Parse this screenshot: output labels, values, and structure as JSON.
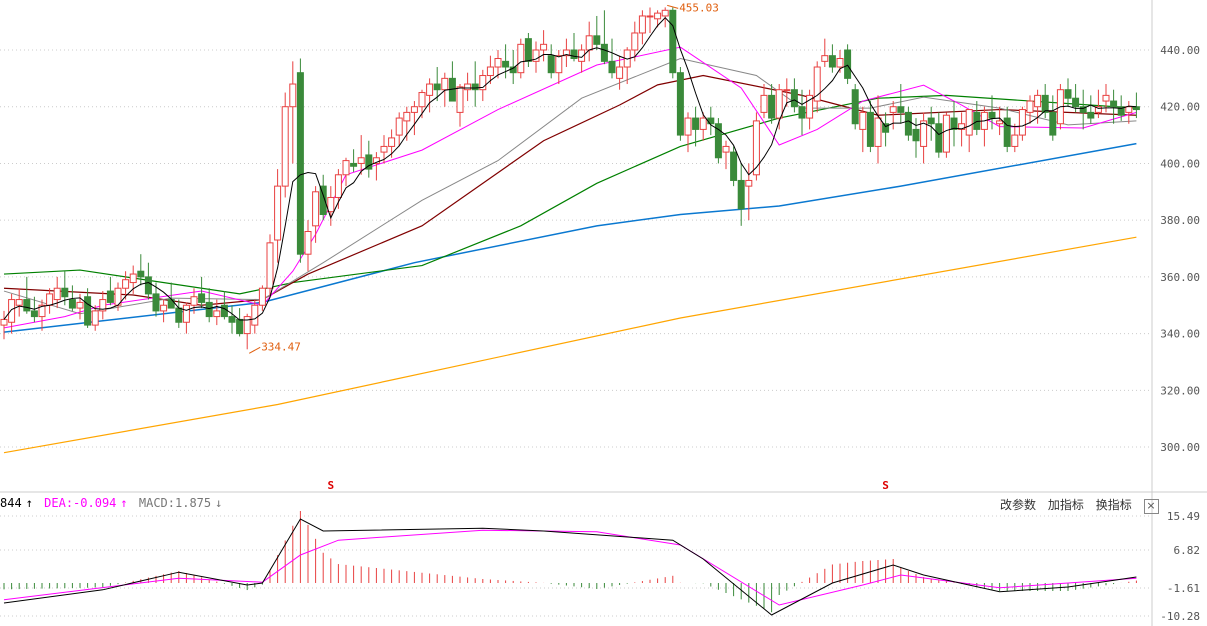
{
  "chart_data": {
    "type": "candlestick",
    "price_axis": {
      "ticks": [
        "440.00",
        "420.00",
        "400.00",
        "380.00",
        "360.00",
        "340.00",
        "320.00",
        "300.00"
      ],
      "tick_values": [
        440,
        420,
        400,
        380,
        360,
        340,
        320,
        300
      ]
    },
    "annotations": {
      "high_label": "455.03",
      "high_value": 455.03,
      "high_index": 87,
      "low_label": "334.47",
      "low_value": 334.47,
      "low_index": 32,
      "markers": [
        {
          "index": 43,
          "label": "S"
        },
        {
          "index": 116,
          "label": "S"
        }
      ]
    },
    "colors": {
      "up": "#e84040",
      "down": "#3a8a3a",
      "ma5": "#000000",
      "ma10": "#ff00ff",
      "ma20": "#888888",
      "ma30": "#800000",
      "ma60": "#008000",
      "ma120": "#0a78d0",
      "ma250": "#ffa500"
    },
    "candles_ohlc": [
      [
        343,
        348,
        338,
        345
      ],
      [
        344,
        354,
        340,
        352
      ],
      [
        350,
        356,
        346,
        352
      ],
      [
        352,
        360,
        347,
        348
      ],
      [
        348,
        353,
        344,
        346
      ],
      [
        346,
        352,
        341,
        350
      ],
      [
        350,
        356,
        347,
        354
      ],
      [
        352,
        360,
        349,
        356
      ],
      [
        356,
        362,
        350,
        353
      ],
      [
        352,
        357,
        348,
        349
      ],
      [
        349,
        354,
        345,
        351
      ],
      [
        353,
        356,
        342,
        343
      ],
      [
        343,
        350,
        341,
        348
      ],
      [
        348,
        355,
        345,
        352
      ],
      [
        355,
        360,
        350,
        351
      ],
      [
        350,
        358,
        348,
        356
      ],
      [
        356,
        362,
        352,
        359
      ],
      [
        358,
        364,
        354,
        361
      ],
      [
        362,
        368,
        357,
        360
      ],
      [
        360,
        365,
        352,
        354
      ],
      [
        354,
        358,
        346,
        348
      ],
      [
        348,
        352,
        344,
        350
      ],
      [
        352,
        358,
        349,
        349
      ],
      [
        349,
        352,
        342,
        344
      ],
      [
        344,
        351,
        340,
        350
      ],
      [
        350,
        356,
        347,
        353
      ],
      [
        354,
        360,
        349,
        351
      ],
      [
        351,
        356,
        344,
        346
      ],
      [
        346,
        352,
        343,
        348
      ],
      [
        350,
        355,
        345,
        346
      ],
      [
        346,
        350,
        340,
        344
      ],
      [
        345,
        349,
        339,
        340
      ],
      [
        340,
        347,
        334.47,
        346
      ],
      [
        343,
        352,
        340,
        350
      ],
      [
        350,
        357,
        348,
        356
      ],
      [
        356,
        375,
        353,
        372
      ],
      [
        373,
        398,
        365,
        392
      ],
      [
        392,
        425,
        388,
        420
      ],
      [
        420,
        436,
        400,
        428
      ],
      [
        432,
        437,
        365,
        368
      ],
      [
        368,
        380,
        362,
        376
      ],
      [
        378,
        392,
        372,
        390
      ],
      [
        392,
        396,
        380,
        382
      ],
      [
        383,
        392,
        378,
        388
      ],
      [
        388,
        398,
        384,
        396
      ],
      [
        396,
        402,
        392,
        401
      ],
      [
        400,
        405,
        397,
        399
      ],
      [
        400,
        410,
        396,
        402
      ],
      [
        403,
        408,
        395,
        398
      ],
      [
        400,
        404,
        394,
        402
      ],
      [
        404,
        410,
        400,
        406
      ],
      [
        406,
        412,
        402,
        409
      ],
      [
        410,
        418,
        406,
        416
      ],
      [
        415,
        420,
        408,
        418
      ],
      [
        418,
        422,
        410,
        420
      ],
      [
        420,
        426,
        416,
        425
      ],
      [
        424,
        430,
        418,
        428
      ],
      [
        428,
        434,
        422,
        426
      ],
      [
        426,
        432,
        420,
        430
      ],
      [
        430,
        436,
        424,
        422
      ],
      [
        418,
        428,
        413,
        427
      ],
      [
        426,
        432,
        422,
        428
      ],
      [
        428,
        436,
        420,
        426
      ],
      [
        426,
        433,
        422,
        431
      ],
      [
        431,
        438,
        428,
        434
      ],
      [
        434,
        440,
        430,
        437
      ],
      [
        436,
        442,
        430,
        434
      ],
      [
        434,
        440,
        428,
        432
      ],
      [
        432,
        444,
        430,
        442
      ],
      [
        444,
        446,
        434,
        436
      ],
      [
        436,
        443,
        432,
        440
      ],
      [
        440,
        447,
        436,
        442
      ],
      [
        438,
        442,
        430,
        432
      ],
      [
        432,
        440,
        428,
        438
      ],
      [
        438,
        444,
        434,
        440
      ],
      [
        440,
        446,
        436,
        437
      ],
      [
        436,
        442,
        432,
        440
      ],
      [
        440,
        450,
        436,
        445
      ],
      [
        445,
        452,
        440,
        442
      ],
      [
        442,
        454,
        435,
        436
      ],
      [
        436,
        444,
        430,
        432
      ],
      [
        430,
        438,
        426,
        434
      ],
      [
        434,
        441,
        428,
        440
      ],
      [
        440,
        450,
        436,
        446
      ],
      [
        446,
        454,
        442,
        452
      ],
      [
        452,
        455,
        446,
        452
      ],
      [
        451,
        454,
        448,
        453
      ],
      [
        452,
        455.03,
        448,
        454
      ],
      [
        454,
        455,
        430,
        432
      ],
      [
        432,
        434,
        408,
        410
      ],
      [
        410,
        418,
        404,
        416
      ],
      [
        416,
        420,
        406,
        412
      ],
      [
        412,
        418,
        408,
        416
      ],
      [
        416,
        420,
        410,
        414
      ],
      [
        414,
        416,
        400,
        402
      ],
      [
        404,
        408,
        398,
        406
      ],
      [
        404,
        406,
        392,
        394
      ],
      [
        394,
        400,
        378,
        384
      ],
      [
        392,
        400,
        380,
        394
      ],
      [
        396,
        418,
        394,
        415
      ],
      [
        418,
        428,
        416,
        424
      ],
      [
        424,
        428,
        414,
        416
      ],
      [
        416,
        428,
        412,
        426
      ],
      [
        426,
        430,
        420,
        426
      ],
      [
        426,
        430,
        418,
        420
      ],
      [
        420,
        426,
        410,
        416
      ],
      [
        416,
        426,
        412,
        424
      ],
      [
        422,
        436,
        418,
        434
      ],
      [
        436,
        444,
        434,
        438
      ],
      [
        438,
        442,
        432,
        434
      ],
      [
        434,
        440,
        432,
        437
      ],
      [
        440,
        442,
        428,
        430
      ],
      [
        426,
        428,
        412,
        414
      ],
      [
        412,
        420,
        404,
        418
      ],
      [
        418,
        422,
        404,
        406
      ],
      [
        406,
        424,
        400,
        416
      ],
      [
        414,
        418,
        406,
        411
      ],
      [
        418,
        422,
        412,
        420
      ],
      [
        420,
        428,
        414,
        418
      ],
      [
        418,
        420,
        408,
        410
      ],
      [
        412,
        416,
        402,
        408
      ],
      [
        406,
        418,
        400,
        415
      ],
      [
        416,
        420,
        408,
        414
      ],
      [
        414,
        418,
        402,
        404
      ],
      [
        404,
        418,
        402,
        417
      ],
      [
        416,
        422,
        406,
        412
      ],
      [
        412,
        418,
        406,
        414
      ],
      [
        410,
        418,
        404,
        419
      ],
      [
        418,
        422,
        410,
        412
      ],
      [
        412,
        420,
        406,
        418
      ],
      [
        418,
        424,
        412,
        416
      ],
      [
        414,
        420,
        410,
        415
      ],
      [
        416,
        420,
        404,
        406
      ],
      [
        406,
        414,
        404,
        410
      ],
      [
        410,
        420,
        408,
        419
      ],
      [
        418,
        424,
        414,
        422
      ],
      [
        420,
        426,
        414,
        424
      ],
      [
        424,
        428,
        416,
        418
      ],
      [
        418,
        424,
        408,
        410
      ],
      [
        414,
        428,
        412,
        426
      ],
      [
        426,
        430,
        420,
        423
      ],
      [
        423,
        428,
        418,
        420
      ],
      [
        420,
        426,
        412,
        418
      ],
      [
        418,
        424,
        414,
        416
      ],
      [
        418,
        426,
        416,
        420
      ],
      [
        422,
        428,
        418,
        424
      ],
      [
        422,
        426,
        414,
        420
      ],
      [
        420,
        424,
        415,
        417
      ],
      [
        418,
        422,
        414,
        420
      ],
      [
        420,
        425,
        416,
        419
      ]
    ],
    "moving_averages": {
      "ma10": [
        [
          0,
          342
        ],
        [
          8,
          346
        ],
        [
          13,
          350
        ],
        [
          26,
          355
        ],
        [
          34,
          350
        ],
        [
          38,
          362
        ],
        [
          41,
          375
        ],
        [
          45,
          396
        ],
        [
          55,
          404.7
        ],
        [
          65,
          419
        ],
        [
          78,
          434.7
        ],
        [
          89,
          441
        ],
        [
          97,
          426.6
        ],
        [
          102,
          406.5
        ],
        [
          107,
          412
        ],
        [
          113,
          422
        ],
        [
          121,
          427.6
        ],
        [
          126,
          420.6
        ],
        [
          131,
          413
        ],
        [
          142,
          412.5
        ],
        [
          149,
          418
        ]
      ],
      "ma20": [
        [
          0,
          355
        ],
        [
          10,
          347
        ],
        [
          22,
          352.5
        ],
        [
          34,
          352
        ],
        [
          42,
          365
        ],
        [
          55,
          387
        ],
        [
          65,
          401
        ],
        [
          76,
          423
        ],
        [
          89,
          437
        ],
        [
          99,
          431
        ],
        [
          105,
          419.5
        ],
        [
          114,
          419.5
        ],
        [
          121,
          423.4
        ],
        [
          131,
          419.5
        ],
        [
          140,
          413.6
        ],
        [
          149,
          415
        ]
      ],
      "ma30": [
        [
          0,
          356
        ],
        [
          17,
          353.6
        ],
        [
          26,
          350
        ],
        [
          34,
          352
        ],
        [
          40,
          361
        ],
        [
          55,
          378
        ],
        [
          71,
          408
        ],
        [
          81,
          420.6
        ],
        [
          86,
          427.7
        ],
        [
          92,
          431
        ],
        [
          105,
          424
        ],
        [
          115,
          417
        ],
        [
          131,
          419
        ],
        [
          149,
          417
        ]
      ],
      "ma60": [
        [
          0,
          361
        ],
        [
          10,
          362.4
        ],
        [
          31,
          354
        ],
        [
          38,
          358
        ],
        [
          55,
          364
        ],
        [
          68,
          378
        ],
        [
          78,
          393
        ],
        [
          89,
          406
        ],
        [
          102,
          416
        ],
        [
          115,
          423
        ],
        [
          124,
          424
        ],
        [
          149,
          419.5
        ]
      ],
      "ma120": [
        [
          0,
          340.5
        ],
        [
          34,
          351
        ],
        [
          54,
          365
        ],
        [
          78,
          378
        ],
        [
          89,
          382
        ],
        [
          102,
          385
        ],
        [
          118,
          392
        ],
        [
          149,
          407
        ]
      ],
      "ma250": [
        [
          0,
          298
        ],
        [
          36,
          315
        ],
        [
          89,
          345.5
        ],
        [
          149,
          374
        ]
      ]
    },
    "macd": {
      "header": {
        "dif_value": "844",
        "dif_arrow": "↑",
        "dea_label": "DEA:-0.094",
        "dea_arrow": "↑",
        "macd_label": "MACD:1.875",
        "macd_arrow": "↓"
      },
      "axis_ticks": [
        "15.49",
        "6.82",
        "-1.61",
        "-10.28"
      ],
      "dif": [
        [
          0,
          -5
        ],
        [
          13,
          -1.7
        ],
        [
          23,
          2.7
        ],
        [
          32,
          -0.5
        ],
        [
          34,
          0
        ],
        [
          39,
          16
        ],
        [
          42,
          13
        ],
        [
          63,
          13.7
        ],
        [
          71,
          13
        ],
        [
          88,
          10.7
        ],
        [
          92,
          6
        ],
        [
          101,
          -8
        ],
        [
          105,
          -4
        ],
        [
          109,
          0
        ],
        [
          117,
          4.5
        ],
        [
          121,
          2
        ],
        [
          131,
          -2.2
        ],
        [
          140,
          -1
        ],
        [
          149,
          1.5
        ]
      ],
      "dea": [
        [
          0,
          -4.2
        ],
        [
          23,
          1.2
        ],
        [
          34,
          0.2
        ],
        [
          39,
          7
        ],
        [
          44,
          10.7
        ],
        [
          63,
          13.2
        ],
        [
          78,
          12.8
        ],
        [
          89,
          9.5
        ],
        [
          102,
          -5.5
        ],
        [
          113,
          -0.5
        ],
        [
          118,
          2
        ],
        [
          131,
          -1.2
        ],
        [
          149,
          1.2
        ]
      ]
    }
  },
  "toolbar": {
    "modify_params": "改参数",
    "add_indicator": "加指标",
    "switch_indicator": "换指标",
    "close": "×"
  }
}
